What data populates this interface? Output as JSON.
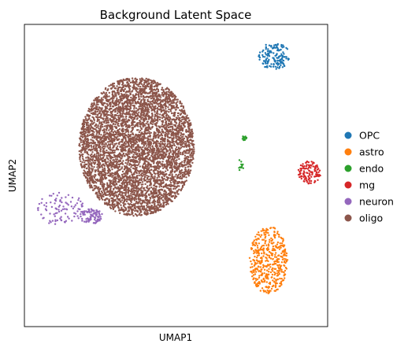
{
  "chart_data": {
    "type": "scatter",
    "title": "Background Latent Space",
    "xlabel": "UMAP1",
    "ylabel": "UMAP2",
    "xlim": [
      -10,
      10
    ],
    "ylim": [
      -10,
      10
    ],
    "grid": false,
    "show_ticks": false,
    "legend_position": "right",
    "series": [
      {
        "name": "OPC",
        "color": "#1f77b4",
        "points": 150,
        "clusters": [
          {
            "cx": 6.5,
            "cy": 7.9,
            "rx": 1.05,
            "ry": 0.9
          }
        ]
      },
      {
        "name": "astro",
        "color": "#ff7f0e",
        "points": 450,
        "clusters": [
          {
            "cx": 6.1,
            "cy": -5.6,
            "rx": 1.25,
            "ry": 2.25
          }
        ]
      },
      {
        "name": "endo",
        "color": "#2ca02c",
        "points": 24,
        "clusters": [
          {
            "cx": 4.5,
            "cy": 2.5,
            "rx": 0.2,
            "ry": 0.2
          },
          {
            "cx": 4.3,
            "cy": 0.7,
            "rx": 0.2,
            "ry": 0.45
          }
        ]
      },
      {
        "name": "mg",
        "color": "#d62728",
        "points": 120,
        "clusters": [
          {
            "cx": 8.8,
            "cy": 0.2,
            "rx": 0.75,
            "ry": 0.75
          }
        ]
      },
      {
        "name": "neuron",
        "color": "#9467bd",
        "points": 190,
        "clusters": [
          {
            "cx": -7.6,
            "cy": -2.2,
            "rx": 1.6,
            "ry": 1.1
          },
          {
            "cx": -5.6,
            "cy": -2.7,
            "rx": 0.75,
            "ry": 0.5
          }
        ]
      },
      {
        "name": "oligo",
        "color": "#8c564b",
        "points": 5200,
        "clusters": [
          {
            "cx": -2.6,
            "cy": 1.9,
            "rx": 3.8,
            "ry": 4.6
          }
        ]
      }
    ]
  }
}
